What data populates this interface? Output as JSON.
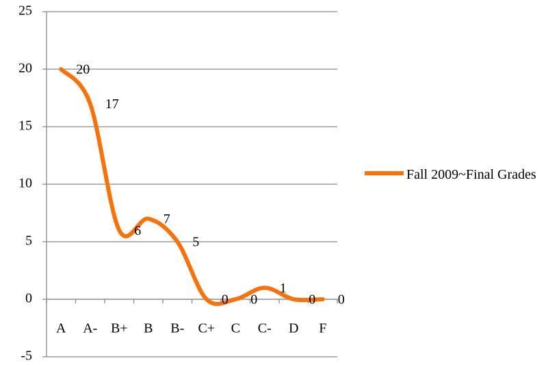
{
  "chart_data": {
    "type": "line",
    "categories": [
      "A",
      "A-",
      "B+",
      "B",
      "B-",
      "C+",
      "C",
      "C-",
      "D",
      "F"
    ],
    "series": [
      {
        "name": "Fall 2009~Final Grades",
        "color": "#fb7106",
        "values": [
          20,
          17,
          6,
          7,
          5,
          0,
          0,
          1,
          0,
          0
        ]
      }
    ],
    "ylim": [
      -5,
      25
    ],
    "yticks": [
      -5,
      0,
      5,
      10,
      15,
      20,
      25
    ],
    "grid": true,
    "smooth": true,
    "legend": "right"
  }
}
